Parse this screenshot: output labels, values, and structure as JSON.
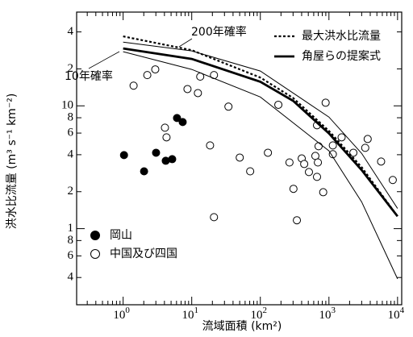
{
  "chart_data": {
    "type": "scatter",
    "x_label": "流域面積 (km²)",
    "y_label": "洪水比流量 (m³ s⁻¹ km⁻²)",
    "x_log": true,
    "y_log": true,
    "xlim": [
      0.21,
      11500
    ],
    "ylim": [
      0.24,
      58
    ],
    "xticks": [
      {
        "value": 1,
        "label": "10",
        "exponent": "0"
      },
      {
        "value": 10,
        "label": "10",
        "exponent": "1"
      },
      {
        "value": 100,
        "label": "10",
        "exponent": "2"
      },
      {
        "value": 1000,
        "label": "10",
        "exponent": "3"
      },
      {
        "value": 10000,
        "label": "10",
        "exponent": "4"
      }
    ],
    "x_minor_ticks": [
      0.3,
      0.4,
      0.5,
      0.6,
      0.7,
      0.8,
      0.9,
      2,
      3,
      4,
      5,
      6,
      7,
      8,
      9,
      20,
      30,
      40,
      50,
      60,
      70,
      80,
      90,
      200,
      300,
      400,
      500,
      600,
      700,
      800,
      900,
      2000,
      3000,
      4000,
      5000,
      6000,
      7000,
      8000,
      9000
    ],
    "yticks": [
      {
        "value": 0.4,
        "label": "4"
      },
      {
        "value": 0.6,
        "label": "6"
      },
      {
        "value": 0.8,
        "label": "8"
      },
      1,
      2,
      4,
      6,
      8,
      10,
      {
        "value": 20,
        "label": "2"
      },
      {
        "value": 40,
        "label": "4"
      }
    ],
    "series": [
      {
        "name": "岡山",
        "kind": "points",
        "marker": "filled",
        "color": "#000000",
        "x": [
          1.03,
          2.02,
          3.02,
          4.18,
          5.19,
          6.1,
          7.38
        ],
        "values": [
          3.97,
          2.93,
          4.15,
          3.57,
          3.68,
          7.96,
          7.38
        ]
      },
      {
        "name": "中国及び四国",
        "kind": "points",
        "marker": "open",
        "color": "#000000",
        "x": [
          1.42,
          2.25,
          2.94,
          4.07,
          4.29,
          8.67,
          12.3,
          13.3,
          18.5,
          21.1,
          21.1,
          34.3,
          50.1,
          71.1,
          129,
          183,
          266,
          304,
          341,
          401,
          436,
          511,
          634,
          670,
          670,
          690,
          706,
          825,
          895,
          1140,
          1140,
          1530,
          2270,
          3380,
          3670,
          5760,
          8520
        ],
        "values": [
          14.6,
          17.8,
          19.8,
          6.64,
          5.54,
          13.7,
          12.7,
          17.3,
          4.76,
          17.8,
          1.24,
          9.85,
          3.79,
          2.93,
          4.15,
          10.2,
          3.46,
          2.11,
          1.17,
          3.73,
          3.36,
          2.89,
          3.91,
          2.64,
          6.95,
          3.46,
          4.69,
          1.98,
          10.6,
          4.76,
          4.04,
          5.54,
          4.15,
          4.55,
          5.37,
          3.52,
          2.49
        ]
      },
      {
        "name": "最大洪水比流量",
        "kind": "line",
        "style": "dotted",
        "color": "#000000",
        "x": [
          1,
          10,
          100,
          300,
          1000,
          3000,
          10000
        ],
        "values": [
          36.8,
          28.4,
          17.0,
          11.6,
          6.25,
          3.16,
          1.26
        ]
      },
      {
        "name": "角屋らの提案式",
        "kind": "line",
        "style": "thick",
        "color": "#000000",
        "x": [
          1,
          10,
          100,
          300,
          1000,
          3000,
          10000
        ],
        "values": [
          29.3,
          24.1,
          15.7,
          11.0,
          5.97,
          3.0,
          1.26
        ]
      },
      {
        "label": "200年確率",
        "kind": "line",
        "style": "thin",
        "color": "#000000",
        "x": [
          1,
          10,
          100,
          1000,
          3000,
          10000
        ],
        "values": [
          33,
          28,
          19.2,
          8.1,
          4.1,
          1.46
        ]
      },
      {
        "label": "10年確率",
        "kind": "line",
        "style": "thin",
        "color": "#000000",
        "x": [
          1,
          10,
          100,
          1000,
          3000,
          10000
        ],
        "values": [
          27.6,
          19.8,
          11.8,
          4.3,
          1.65,
          0.39
        ]
      }
    ]
  }
}
